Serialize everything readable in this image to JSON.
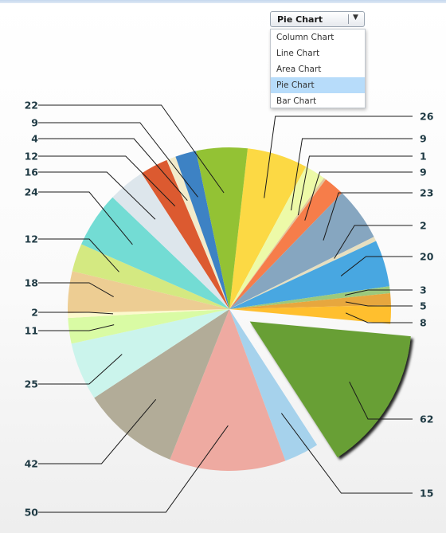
{
  "chart_type_selector": {
    "selected_label": "Pie Chart",
    "options": [
      {
        "label": "Column Chart",
        "selected": false
      },
      {
        "label": "Line Chart",
        "selected": false
      },
      {
        "label": "Area Chart",
        "selected": false
      },
      {
        "label": "Pie Chart",
        "selected": true
      },
      {
        "label": "Bar Chart",
        "selected": false
      }
    ]
  },
  "chart_data": {
    "type": "pie",
    "title": "",
    "exploded_slice_value": 62,
    "slices": [
      {
        "value": 26,
        "color": "#fcd944"
      },
      {
        "value": 9,
        "color": "#edfaa8"
      },
      {
        "value": 1,
        "color": "#e3c79b"
      },
      {
        "value": 9,
        "color": "#f67d4a"
      },
      {
        "value": 23,
        "color": "#86a6c0"
      },
      {
        "value": 2,
        "color": "#e6dfc0"
      },
      {
        "value": 20,
        "color": "#48a7e1"
      },
      {
        "value": 3,
        "color": "#9cc97c"
      },
      {
        "value": 5,
        "color": "#e7a73e"
      },
      {
        "value": 8,
        "color": "#ffbf2e"
      },
      {
        "value": 62,
        "color": "#689f36"
      },
      {
        "value": 15,
        "color": "#a6d2ec"
      },
      {
        "value": 50,
        "color": "#eeaaa1"
      },
      {
        "value": 42,
        "color": "#b2ac98"
      },
      {
        "value": 25,
        "color": "#cbf4ec"
      },
      {
        "value": 11,
        "color": "#d9fba4"
      },
      {
        "value": 2,
        "color": "#fdf9cd"
      },
      {
        "value": 18,
        "color": "#edcd93"
      },
      {
        "value": 12,
        "color": "#d4e981"
      },
      {
        "value": 24,
        "color": "#73dcd4"
      },
      {
        "value": 16,
        "color": "#dde6ec"
      },
      {
        "value": 12,
        "color": "#dc5a30"
      },
      {
        "value": 4,
        "color": "#f2ebcb"
      },
      {
        "value": 9,
        "color": "#3d82c4"
      },
      {
        "value": 22,
        "color": "#93c234"
      }
    ]
  }
}
